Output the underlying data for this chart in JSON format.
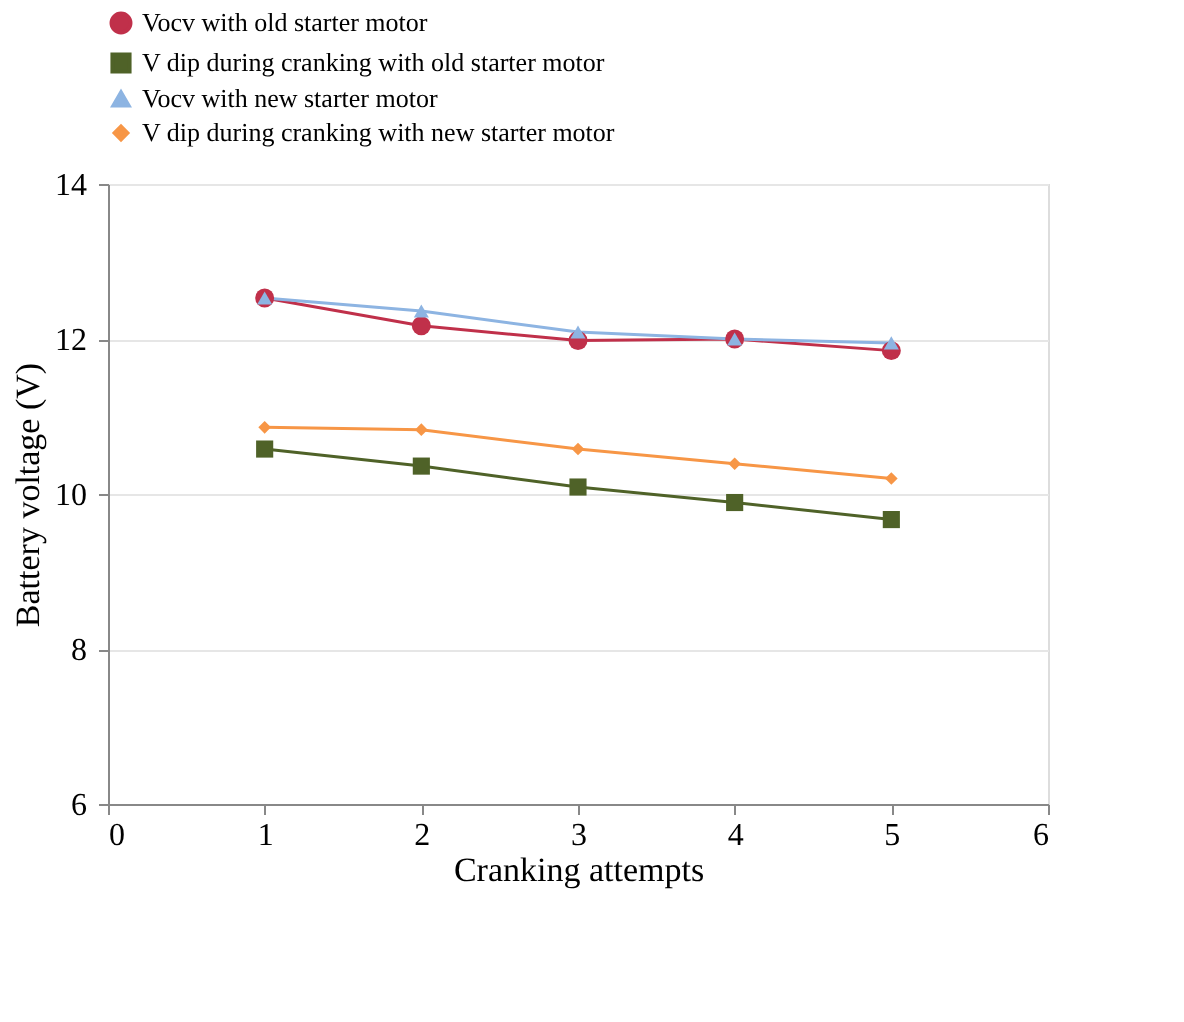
{
  "chart_data": {
    "type": "line",
    "xlabel": "Cranking attempts",
    "ylabel": "Battery voltage (V)",
    "x": [
      1,
      2,
      3,
      4,
      5
    ],
    "series": [
      {
        "name": "Vocv with old starter motor",
        "color": "#c0304a",
        "marker": "circle",
        "values": [
          12.53,
          12.17,
          11.98,
          12.0,
          11.85
        ]
      },
      {
        "name": "V dip during cranking with old starter motor",
        "color": "#4f6228",
        "marker": "square",
        "values": [
          10.58,
          10.36,
          10.09,
          9.89,
          9.67
        ]
      },
      {
        "name": "Vocv with new starter motor",
        "color": "#8db4e2",
        "marker": "triangle",
        "values": [
          12.53,
          12.36,
          12.09,
          12.0,
          11.95
        ]
      },
      {
        "name": "V dip during cranking with new starter motor",
        "color": "#f79646",
        "marker": "diamond",
        "values": [
          10.86,
          10.83,
          10.58,
          10.39,
          10.2
        ]
      }
    ],
    "xlim": [
      0,
      6
    ],
    "xticks": [
      0,
      1,
      2,
      3,
      4,
      5,
      6
    ],
    "ylim": [
      6,
      14
    ],
    "yticks": [
      6,
      8,
      10,
      12,
      14
    ],
    "grid": "y",
    "legend": "top",
    "line_style": "solid"
  }
}
